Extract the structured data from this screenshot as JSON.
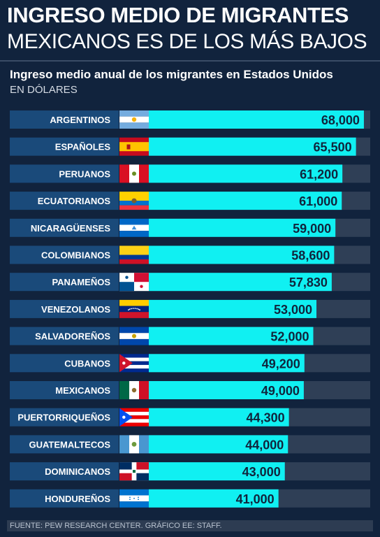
{
  "header": {
    "title_line1": "INGRESO MEDIO DE MIGRANTES",
    "title_line2": "MEXICANOS ES DE LOS MÁS BAJOS",
    "subtitle": "Ingreso medio anual de los migrantes en Estados Unidos",
    "unit": "EN DÓLARES"
  },
  "chart_data": {
    "type": "bar",
    "orientation": "horizontal",
    "title": "Ingreso medio anual de los migrantes en Estados Unidos",
    "ylabel": "EN DÓLARES",
    "xlim": [
      0,
      70000
    ],
    "categories": [
      "ARGENTINOS",
      "ESPAÑOLES",
      "PERUANOS",
      "ECUATORIANOS",
      "NICARAGÜENSES",
      "COLOMBIANOS",
      "PANAMEÑOS",
      "VENEZOLANOS",
      "SALVADOREÑOS",
      "CUBANOS",
      "MEXICANOS",
      "PUERTORRIQUEÑOS",
      "GUATEMALTECOS",
      "DOMINICANOS",
      "HONDUREÑOS"
    ],
    "values": [
      68000,
      65500,
      61200,
      61000,
      59000,
      58600,
      57830,
      53000,
      52000,
      49200,
      49000,
      44300,
      44000,
      43000,
      41000
    ],
    "value_labels": [
      "68,000",
      "65,500",
      "61,200",
      "61,000",
      "59,000",
      "58,600",
      "57,830",
      "53,000",
      "52,000",
      "49,200",
      "49,000",
      "44,300",
      "44,000",
      "43,000",
      "41,000"
    ],
    "flags": [
      "argentina-flag",
      "spain-flag",
      "peru-flag",
      "ecuador-flag",
      "nicaragua-flag",
      "colombia-flag",
      "panama-flag",
      "venezuela-flag",
      "el-salvador-flag",
      "cuba-flag",
      "mexico-flag",
      "puerto-rico-flag",
      "guatemala-flag",
      "dominican-republic-flag",
      "honduras-flag"
    ],
    "colors": {
      "bar": "#10f0f2",
      "track": "#2f3f56",
      "label_box": "#1a4a7a"
    }
  },
  "footer": {
    "source": "FUENTE: PEW RESEARCH CENTER. GRÁFICO EE: STAFF."
  }
}
